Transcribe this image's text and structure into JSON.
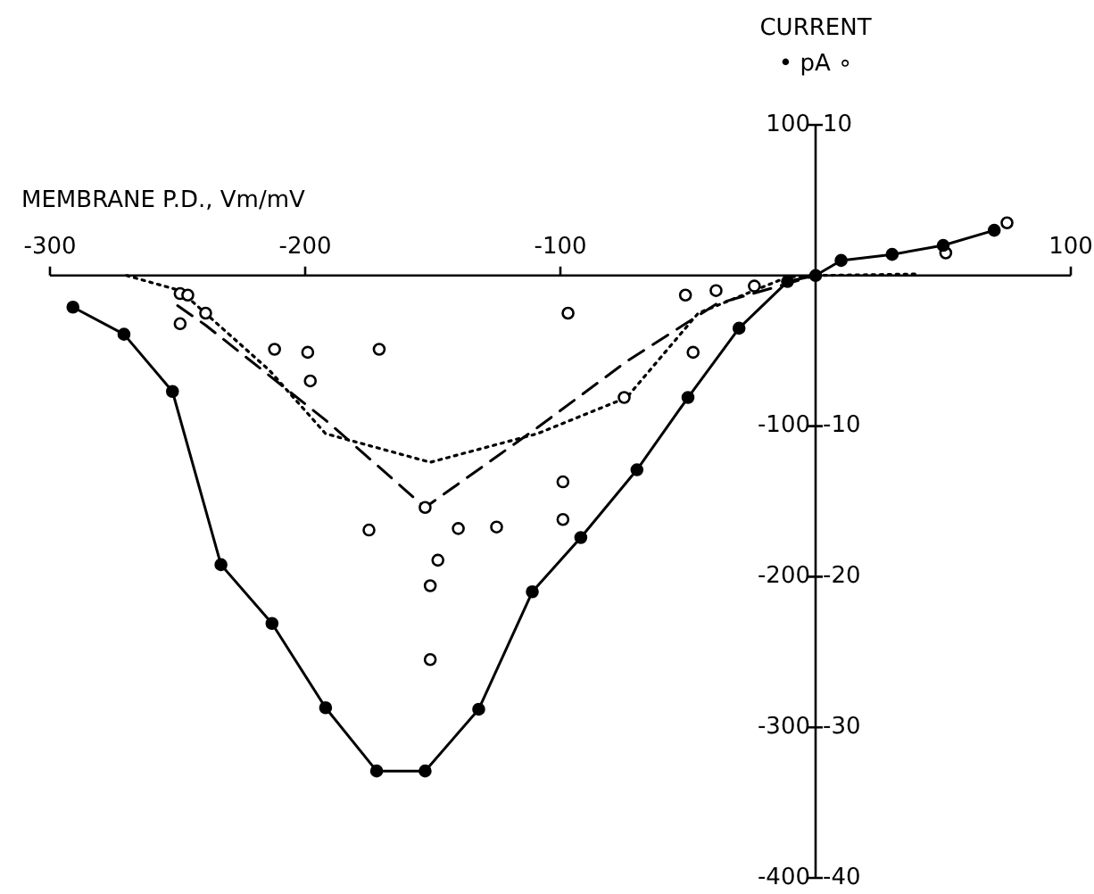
{
  "chart_data": {
    "type": "line",
    "xlabel": "MEMBRANE P.D., Vm/mV",
    "annotations": [
      "CURRENT",
      "• pA ∘"
    ],
    "xlim": [
      -300,
      100
    ],
    "xticks": [
      -300,
      -200,
      -100,
      100
    ],
    "ylim": [
      -400,
      100
    ],
    "yticks": [
      -400,
      -300,
      -200,
      -100,
      100
    ],
    "y2lim": [
      -40,
      10
    ],
    "y2ticks": [
      -40,
      -30,
      -20,
      -10,
      10
    ],
    "series": [
      {
        "color": "#000000",
        "marker": "circle",
        "line_style": "solid",
        "x": [
          -291,
          -271,
          -252,
          -233,
          -213,
          -192,
          -172,
          -153,
          -132,
          -111,
          -92,
          -70,
          -50,
          -30,
          -11,
          0,
          10,
          30,
          50,
          70
        ],
        "values": [
          -21,
          -39,
          -77,
          -192,
          -231,
          -287,
          -329,
          -329,
          -288,
          -210,
          -174,
          -129,
          -81,
          -35,
          -4,
          0,
          10,
          14,
          20,
          30
        ]
      },
      {
        "type": "scatter",
        "color": "#000000",
        "marker": "circle",
        "axis": "y2",
        "x": [
          -249,
          -246,
          -249,
          -239,
          -212,
          -199,
          -198,
          -175,
          -171,
          -153,
          -151,
          -151,
          -148,
          -140,
          -125,
          -99,
          -99,
          -97,
          -75,
          -51,
          -48,
          -39,
          -24,
          51,
          75
        ],
        "values": [
          -1.2,
          -1.3,
          -3.2,
          -2.5,
          -4.9,
          -5.1,
          -7.0,
          -16.9,
          -4.9,
          -15.4,
          -20.6,
          -25.5,
          -18.9,
          -16.8,
          -16.7,
          -13.7,
          -16.2,
          -2.5,
          -8.1,
          -1.3,
          -5.1,
          -1.0,
          -0.7,
          1.5,
          3.5
        ]
      },
      {
        "color": "#000000",
        "marker": "none",
        "line_style": "dashed",
        "axis": "y2",
        "x": [
          -250,
          -239,
          -192,
          -153,
          -109,
          -74,
          -39,
          0
        ],
        "values": [
          -2,
          -3.3,
          -9.6,
          -15.4,
          -10.1,
          -5.7,
          -1.9,
          0
        ]
      },
      {
        "color": "#000000",
        "marker": "none",
        "line_style": "dotted",
        "axis": "y2",
        "x": [
          -270,
          -249,
          -214,
          -192,
          -151,
          -109,
          -74,
          -46,
          -11,
          0,
          40
        ],
        "values": [
          0,
          -1,
          -6.3,
          -10.5,
          -12.4,
          -10.5,
          -8.1,
          -2.5,
          -0.1,
          0,
          0.1
        ]
      }
    ]
  }
}
